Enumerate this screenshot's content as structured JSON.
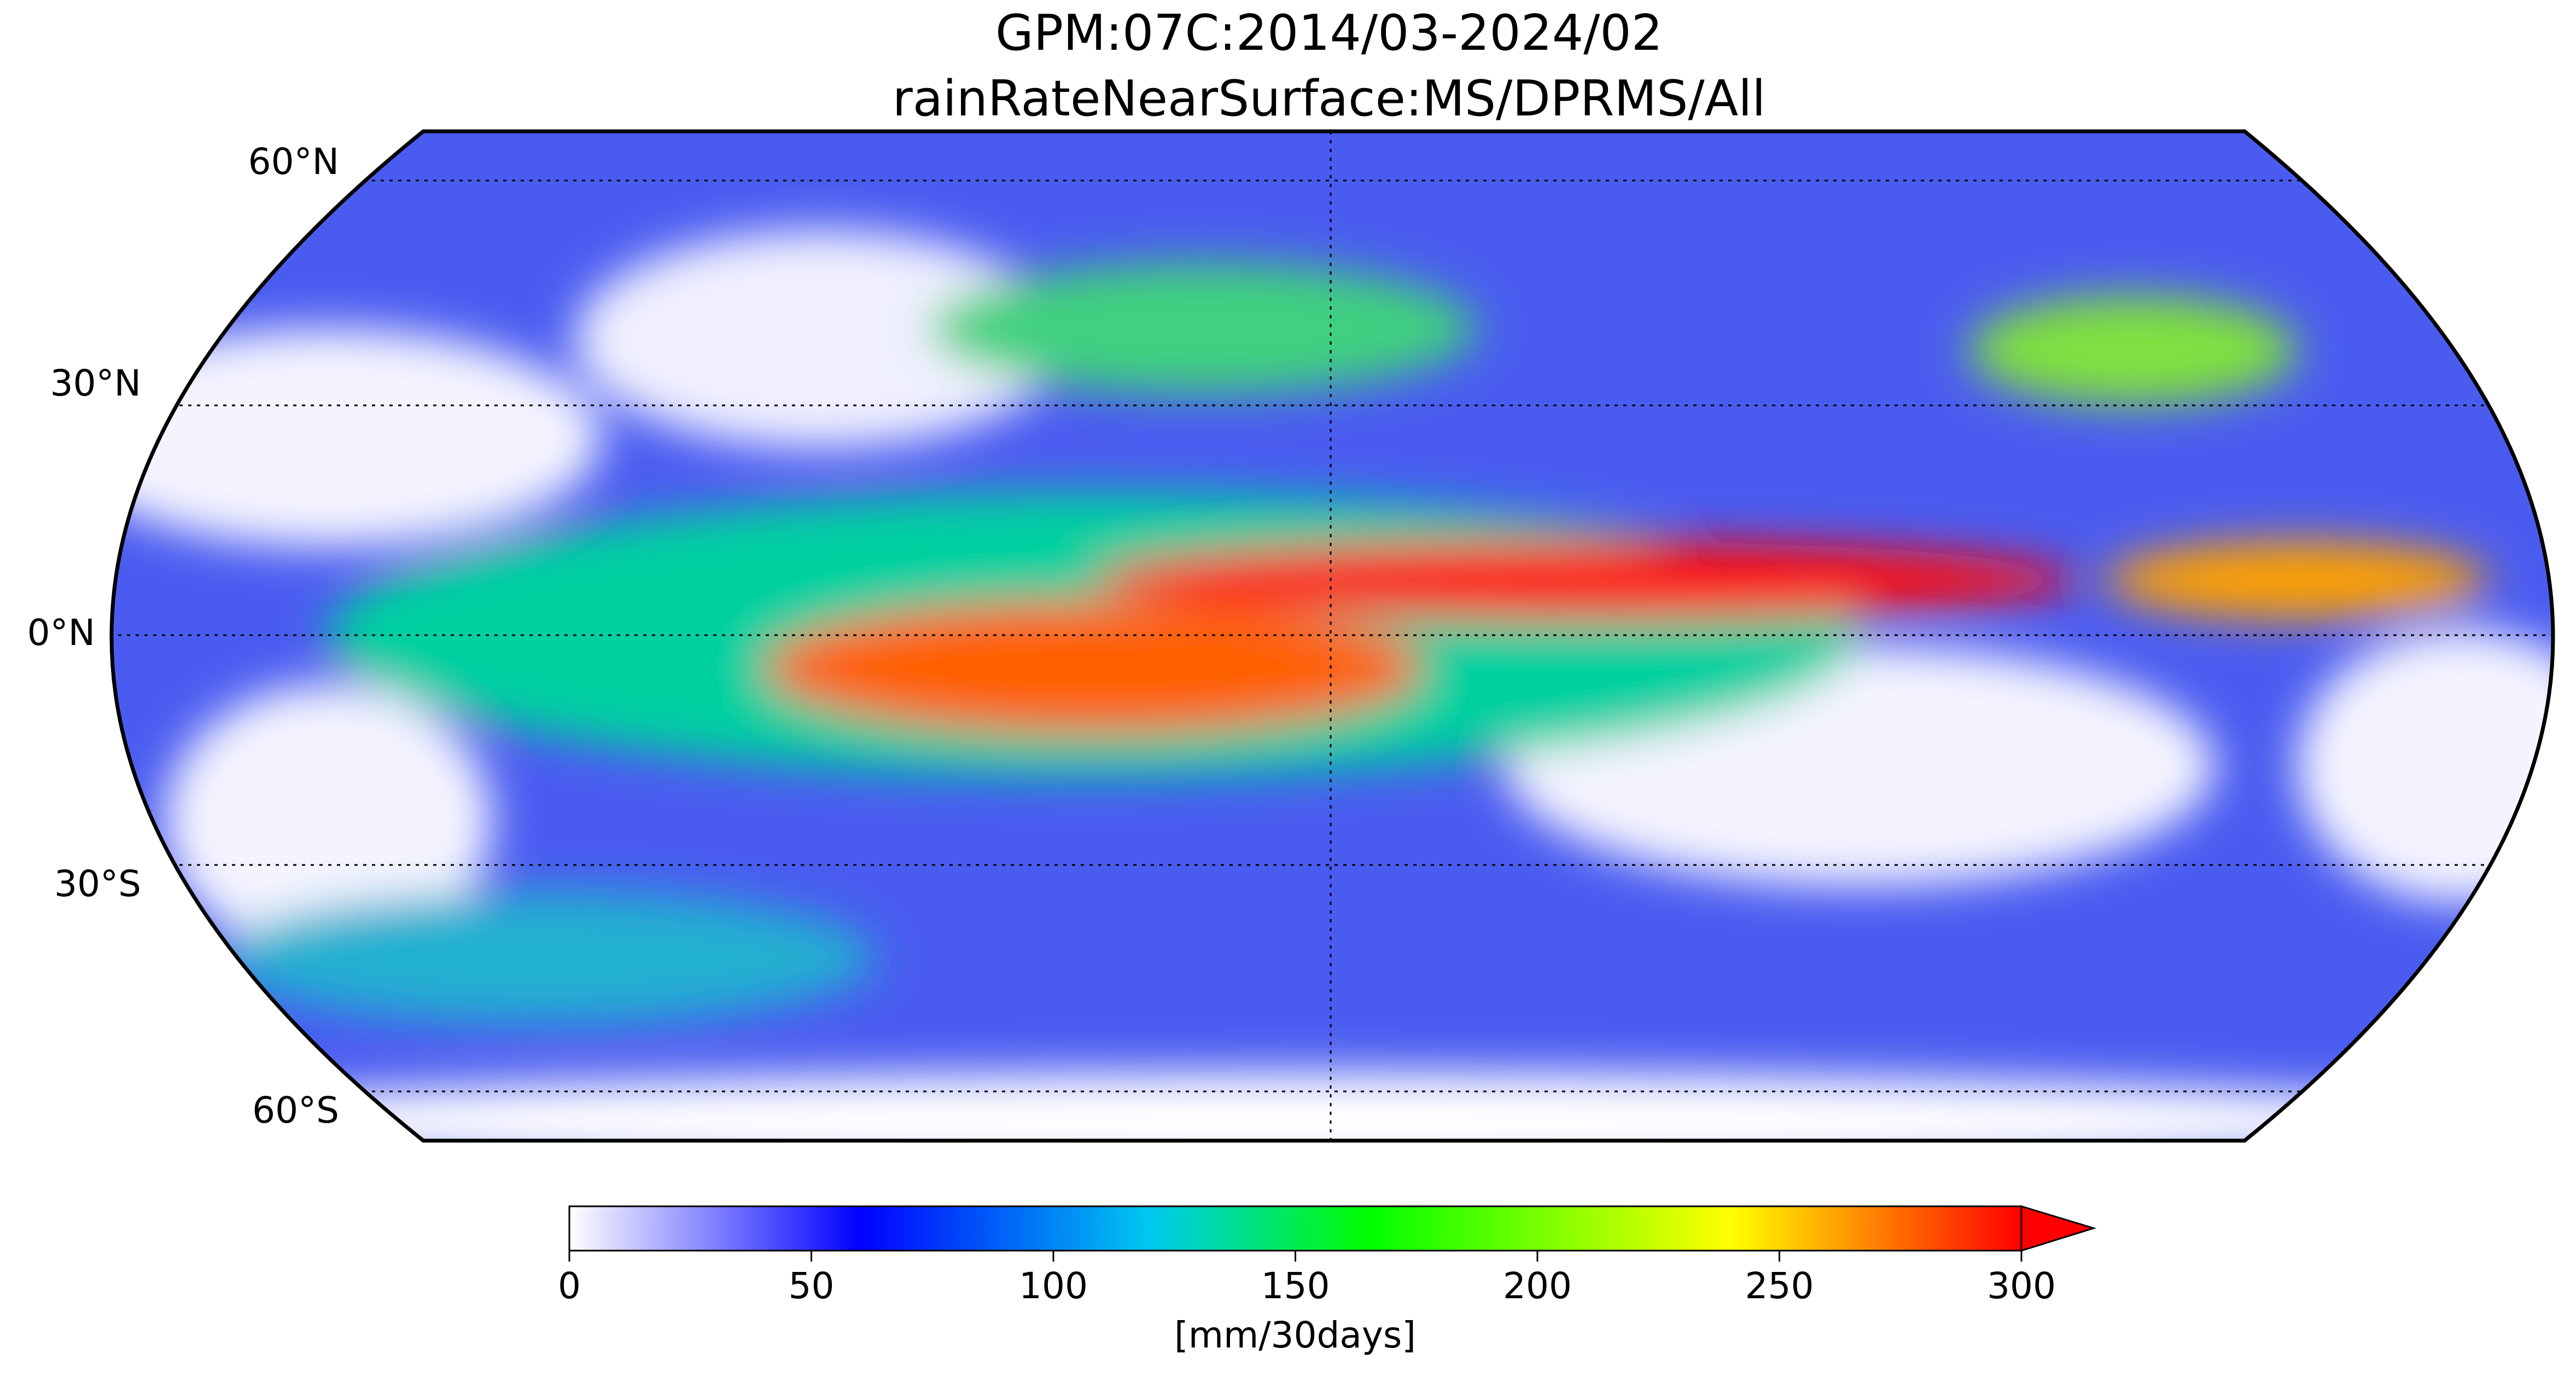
{
  "title": [
    "GPM:07C:2014/03-2024/02",
    "rainRateNearSurface:MS/DPRMS/All"
  ],
  "map": {
    "lat_labels": [
      "60°N",
      "30°N",
      "0°N",
      "30°S",
      "60°S"
    ]
  },
  "colorbar": {
    "lim": [
      0,
      300
    ],
    "ticks": [
      0,
      50,
      100,
      150,
      200,
      250,
      300
    ],
    "label": "[mm/30days]",
    "extend": "max"
  }
}
